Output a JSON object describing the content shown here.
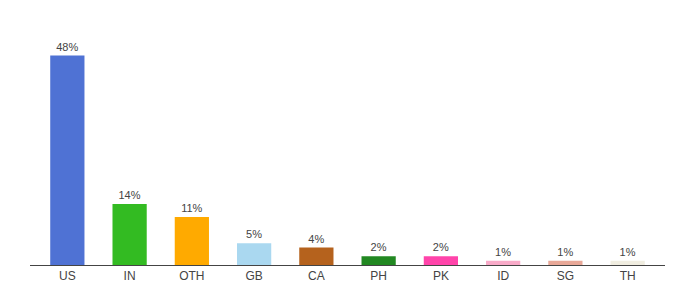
{
  "chart_data": {
    "type": "bar",
    "categories": [
      "US",
      "IN",
      "OTH",
      "GB",
      "CA",
      "PH",
      "PK",
      "ID",
      "SG",
      "TH"
    ],
    "values": [
      48,
      14,
      11,
      5,
      4,
      2,
      2,
      1,
      1,
      1
    ],
    "value_labels": [
      "48%",
      "14%",
      "11%",
      "5%",
      "4%",
      "2%",
      "2%",
      "1%",
      "1%",
      "1%"
    ],
    "colors": [
      "#4f72d4",
      "#33bb22",
      "#ffaa00",
      "#aad8f0",
      "#b5621d",
      "#228822",
      "#ff44aa",
      "#f8aac8",
      "#e8a898",
      "#f0ede0"
    ],
    "ylim": [
      0,
      55
    ],
    "grid": false,
    "data_labels": true,
    "tick_labels": "x"
  }
}
